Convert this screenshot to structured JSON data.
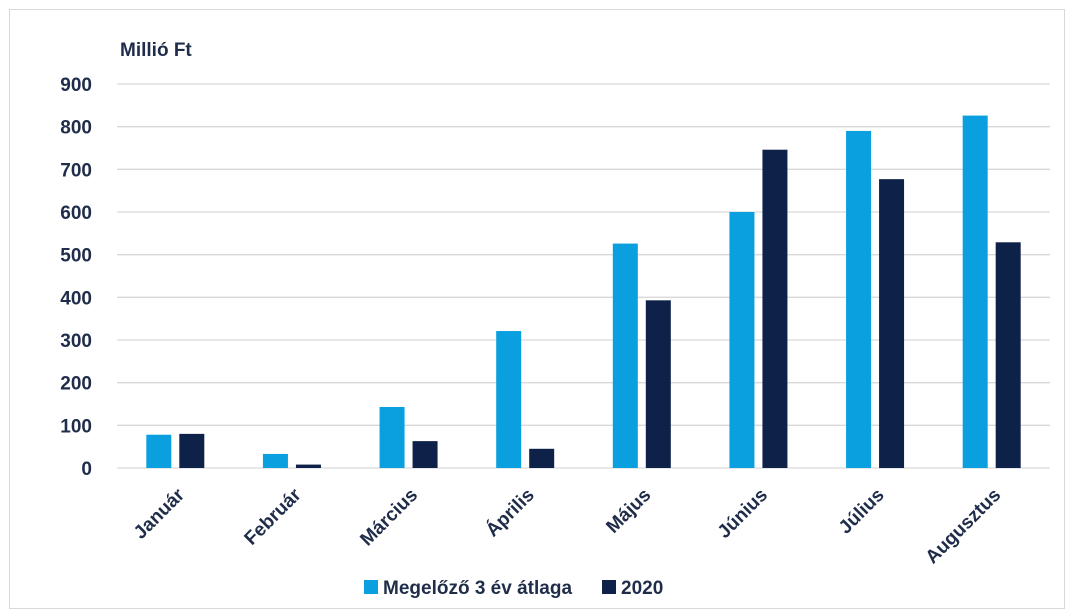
{
  "chart_data": {
    "type": "bar",
    "unit_label": "Millió Ft",
    "categories": [
      "Január",
      "Február",
      "Március",
      "Április",
      "Május",
      "Június",
      "Július",
      "Augusztus"
    ],
    "series": [
      {
        "name": "Megelőző 3 év átlaga",
        "color": "#0aa0df",
        "values": [
          78,
          33,
          143,
          321,
          526,
          600,
          790,
          826
        ]
      },
      {
        "name": "2020",
        "color": "#0e2148",
        "values": [
          80,
          8,
          63,
          45,
          393,
          746,
          677,
          529
        ]
      }
    ],
    "ylim": [
      0,
      900
    ],
    "yticks": [
      0,
      100,
      200,
      300,
      400,
      500,
      600,
      700,
      800,
      900
    ],
    "grid": true,
    "legend_position": "bottom"
  }
}
